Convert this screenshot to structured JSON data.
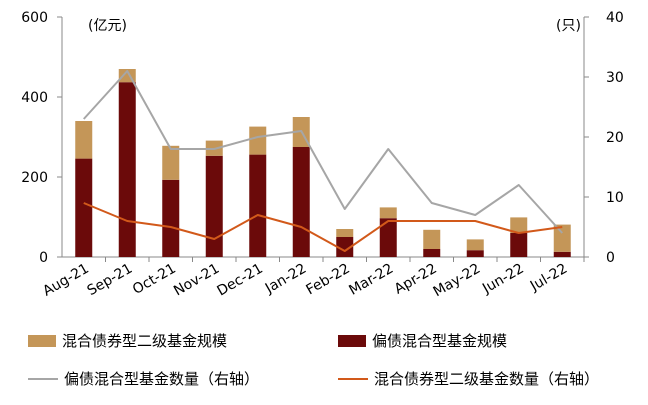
{
  "chart_data": {
    "type": "bar",
    "categories": [
      "Aug-21",
      "Sep-21",
      "Oct-21",
      "Nov-21",
      "Dec-21",
      "Jan-22",
      "Feb-22",
      "Mar-22",
      "Apr-22",
      "May-22",
      "Jun-22",
      "Jul-22"
    ],
    "left_axis": {
      "unit": "(亿元)",
      "ylim": [
        0,
        600
      ],
      "ticks": [
        "0",
        "200",
        "400",
        "600"
      ]
    },
    "right_axis": {
      "unit": "(只)",
      "ylim": [
        0,
        40
      ],
      "ticks": [
        "0",
        "10",
        "20",
        "30",
        "40"
      ]
    },
    "bar_series": [
      {
        "name": "偏债混合型基金规模",
        "color": "#6b0a0a",
        "values": [
          246,
          437,
          193,
          253,
          256,
          275,
          50,
          97,
          20,
          17,
          60,
          13
        ]
      },
      {
        "name": "混合债券型二级基金规模",
        "color": "#c49658",
        "values": [
          94,
          33,
          85,
          38,
          70,
          75,
          20,
          27,
          48,
          27,
          39,
          68
        ]
      }
    ],
    "line_series": [
      {
        "name": "偏债混合型基金数量（右轴）",
        "color": "#a6a6a6",
        "axis": "right",
        "values": [
          23,
          31,
          18,
          18,
          20,
          21,
          8,
          18,
          9,
          7,
          12,
          4
        ]
      },
      {
        "name": "混合债券型二级基金数量（右轴）",
        "color": "#d2591a",
        "axis": "right",
        "values": [
          9,
          6,
          5,
          3,
          7,
          5,
          1,
          6,
          6,
          6,
          4,
          5
        ]
      }
    ],
    "legend": [
      {
        "label": "混合债券型二级基金规模",
        "kind": "box",
        "color": "#c49658"
      },
      {
        "label": "偏债混合型基金规模",
        "kind": "box",
        "color": "#6b0a0a"
      },
      {
        "label": "偏债混合型基金数量（右轴）",
        "kind": "line",
        "color": "#a6a6a6"
      },
      {
        "label": "混合债券型二级基金数量（右轴）",
        "kind": "line",
        "color": "#d2591a"
      }
    ]
  }
}
